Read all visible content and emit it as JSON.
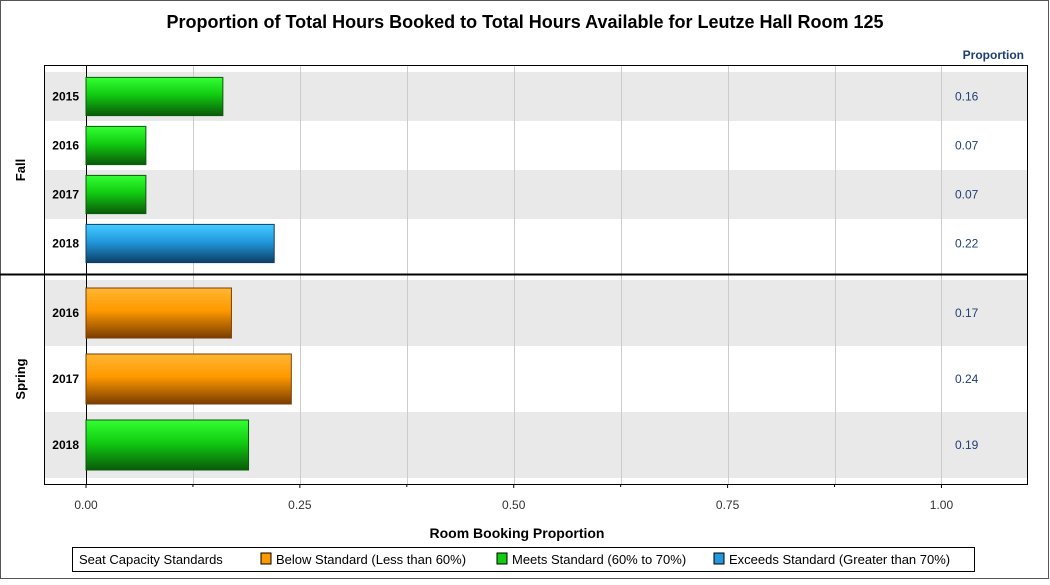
{
  "chart_data": {
    "type": "bar",
    "orientation": "horizontal",
    "title": "Proportion of Total Hours Booked to Total Hours Available for Leutze Hall Room 125",
    "xlabel": "Room Booking Proportion",
    "xlim": [
      0,
      1.1
    ],
    "x_ticks": [
      "0.00",
      "0.25",
      "0.50",
      "0.75",
      "1.00"
    ],
    "x_tick_values": [
      0,
      0.25,
      0.5,
      0.75,
      1.0
    ],
    "value_column_header": "Proportion",
    "grid": true,
    "legend_placement": "bottom",
    "groups": [
      {
        "name": "Fall",
        "rows": [
          {
            "category": "2015",
            "value": 0.16,
            "value_label": "0.16",
            "standard": "meets"
          },
          {
            "category": "2016",
            "value": 0.07,
            "value_label": "0.07",
            "standard": "meets"
          },
          {
            "category": "2017",
            "value": 0.07,
            "value_label": "0.07",
            "standard": "meets"
          },
          {
            "category": "2018",
            "value": 0.22,
            "value_label": "0.22",
            "standard": "exceeds"
          }
        ]
      },
      {
        "name": "Spring",
        "rows": [
          {
            "category": "2016",
            "value": 0.17,
            "value_label": "0.17",
            "standard": "below"
          },
          {
            "category": "2017",
            "value": 0.24,
            "value_label": "0.24",
            "standard": "below"
          },
          {
            "category": "2018",
            "value": 0.19,
            "value_label": "0.19",
            "standard": "meets"
          }
        ]
      }
    ],
    "legend": {
      "title": "Seat Capacity Standards",
      "items": [
        {
          "key": "below",
          "label": "Below Standard (Less than 60%)",
          "color": "#ff9900"
        },
        {
          "key": "meets",
          "label": "Meets Standard (60% to 70%)",
          "color": "#22dd22"
        },
        {
          "key": "exceeds",
          "label": "Exceeds Standard (Greater than 70%)",
          "color": "#33bbee"
        }
      ]
    },
    "colors": {
      "below": {
        "light": "#ffb733",
        "mid": "#ff9900",
        "dark": "#7a3d00"
      },
      "meets": {
        "light": "#33ff33",
        "mid": "#11cc11",
        "dark": "#0a5a0a"
      },
      "exceeds": {
        "light": "#44ccff",
        "mid": "#2299dd",
        "dark": "#0d3f66"
      },
      "band": "#e9e9e9",
      "gridline": "#cccccc",
      "value_text": "#1f3f73"
    }
  }
}
